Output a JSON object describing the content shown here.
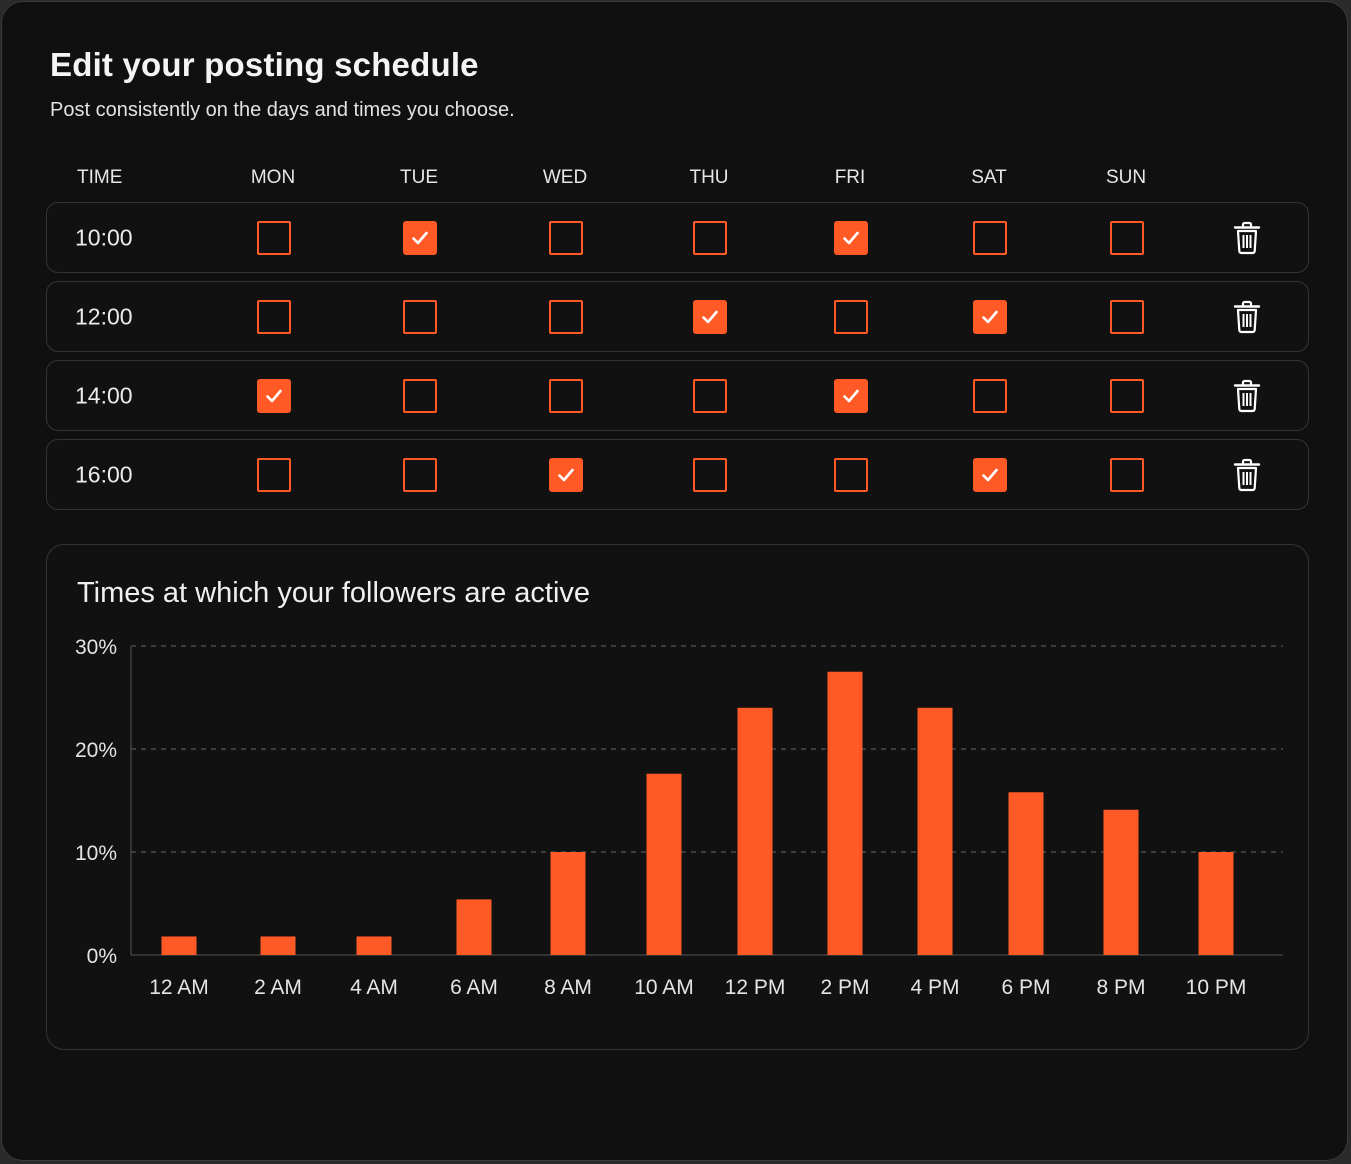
{
  "header": {
    "title": "Edit your posting schedule",
    "subtitle": "Post consistently on the days and times you choose."
  },
  "schedule": {
    "columns": [
      "TIME",
      "MON",
      "TUE",
      "WED",
      "THU",
      "FRI",
      "SAT",
      "SUN"
    ],
    "rows": [
      {
        "time": "10:00",
        "checked": [
          false,
          true,
          false,
          false,
          true,
          false,
          false
        ]
      },
      {
        "time": "12:00",
        "checked": [
          false,
          false,
          false,
          true,
          false,
          true,
          false
        ]
      },
      {
        "time": "14:00",
        "checked": [
          true,
          false,
          false,
          false,
          true,
          false,
          false
        ]
      },
      {
        "time": "16:00",
        "checked": [
          false,
          false,
          true,
          false,
          false,
          true,
          false
        ]
      }
    ],
    "delete_icon": "trash-icon",
    "check_icon": "checkmark-icon"
  },
  "colors": {
    "accent": "#ff5a26",
    "background": "#101010",
    "border": "#343434",
    "text": "#f0f0f0"
  },
  "chart_data": {
    "type": "bar",
    "title": "Times at which your followers are active",
    "categories": [
      "12 AM",
      "2 AM",
      "4 AM",
      "6 AM",
      "8 AM",
      "10 AM",
      "12 PM",
      "2 PM",
      "4 PM",
      "6 PM",
      "8 PM",
      "10 PM"
    ],
    "values": [
      1.8,
      1.8,
      1.8,
      5.4,
      10.0,
      17.6,
      24.0,
      27.5,
      24.0,
      15.8,
      14.1,
      10.0
    ],
    "ylim": [
      0,
      30
    ],
    "yticks": [
      "0%",
      "10%",
      "20%",
      "30%"
    ],
    "grid": "dashed horizontal",
    "color": "#ff5a26"
  }
}
